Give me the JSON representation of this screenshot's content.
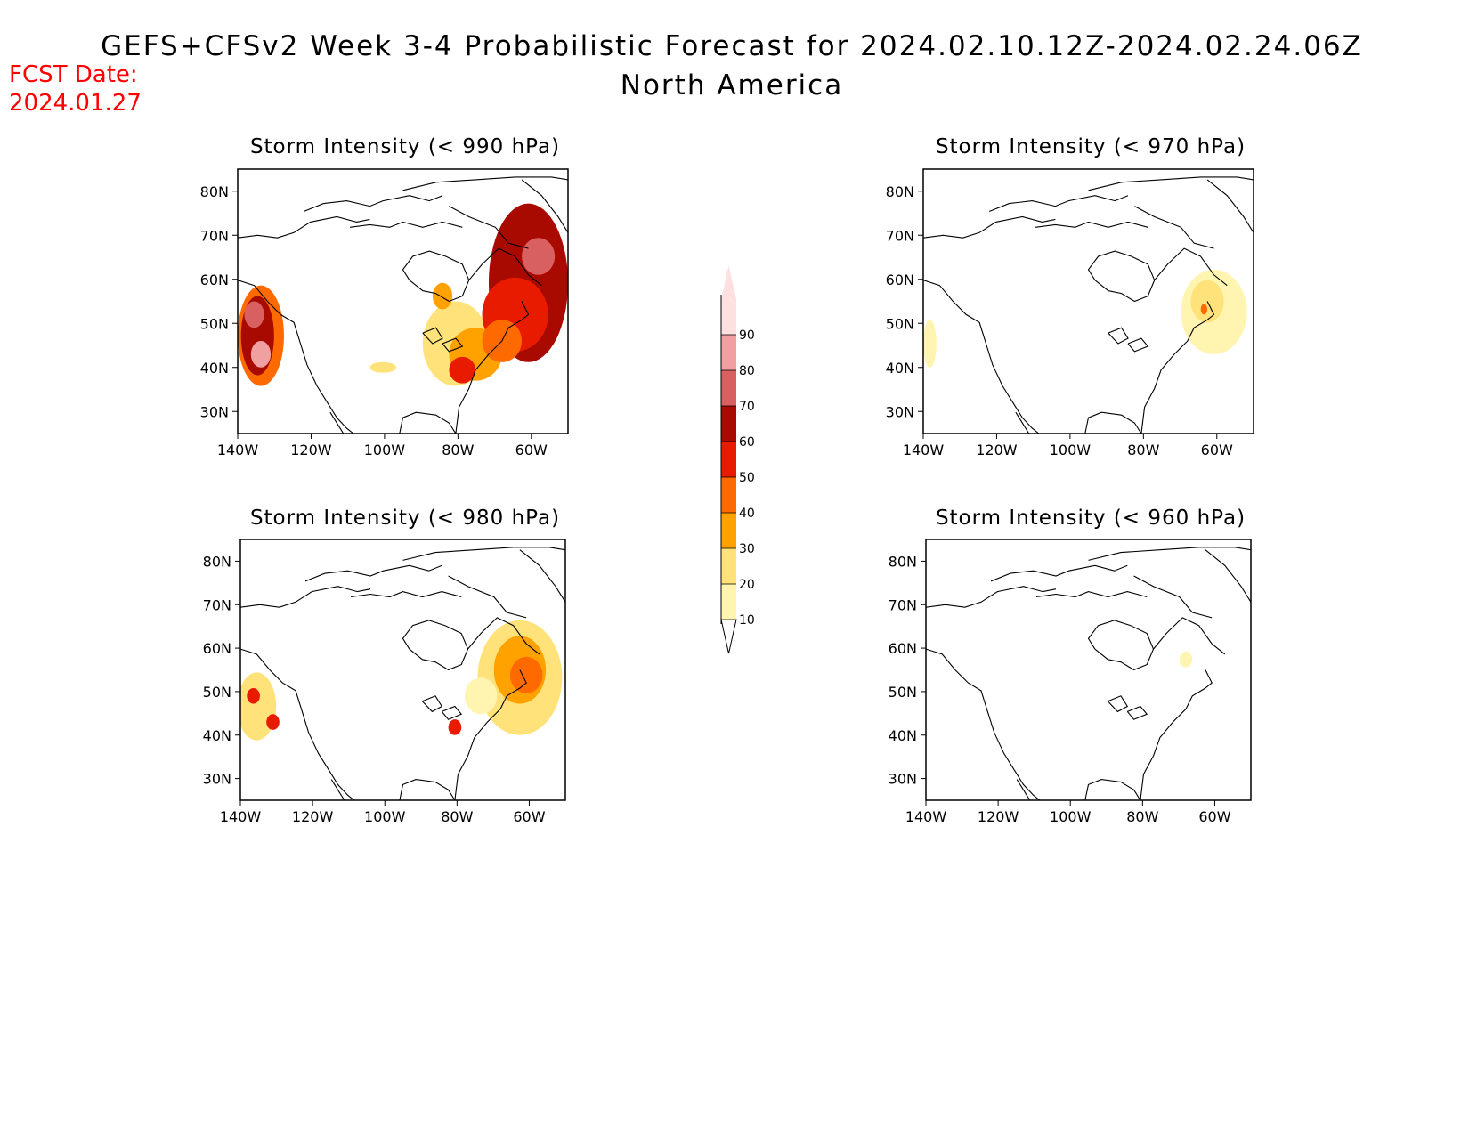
{
  "title": {
    "line1": "GEFS+CFSv2 Week 3-4 Probabilistic Forecast for 2024.02.10.12Z-2024.02.24.06Z",
    "line2": "North America"
  },
  "fcst": {
    "label": "FCST Date:",
    "date": "2024.01.27",
    "color": "#ff0000"
  },
  "panels": [
    {
      "id": "p990",
      "title": "Storm Intensity (< 990 hPa)"
    },
    {
      "id": "p970",
      "title": "Storm Intensity (< 970 hPa)"
    },
    {
      "id": "p980",
      "title": "Storm Intensity (< 980 hPa)"
    },
    {
      "id": "p960",
      "title": "Storm Intensity (< 960 hPa)"
    }
  ],
  "axes": {
    "lat_labels": [
      "80N",
      "70N",
      "60N",
      "50N",
      "40N",
      "30N"
    ],
    "lon_labels": [
      "140W",
      "120W",
      "100W",
      "80W",
      "60W"
    ],
    "lat_values": [
      80,
      70,
      60,
      50,
      40,
      30
    ],
    "lon_values": [
      -140,
      -120,
      -100,
      -80,
      -60
    ]
  },
  "colorbar": {
    "labels": [
      "10",
      "20",
      "30",
      "40",
      "50",
      "60",
      "70",
      "80",
      "90"
    ],
    "colors": [
      "#fff5b0",
      "#ffe27a",
      "#ffa200",
      "#ff6a00",
      "#e81b00",
      "#a80a00",
      "#d96060",
      "#f0a0a0",
      "#ffe0e0"
    ]
  }
}
